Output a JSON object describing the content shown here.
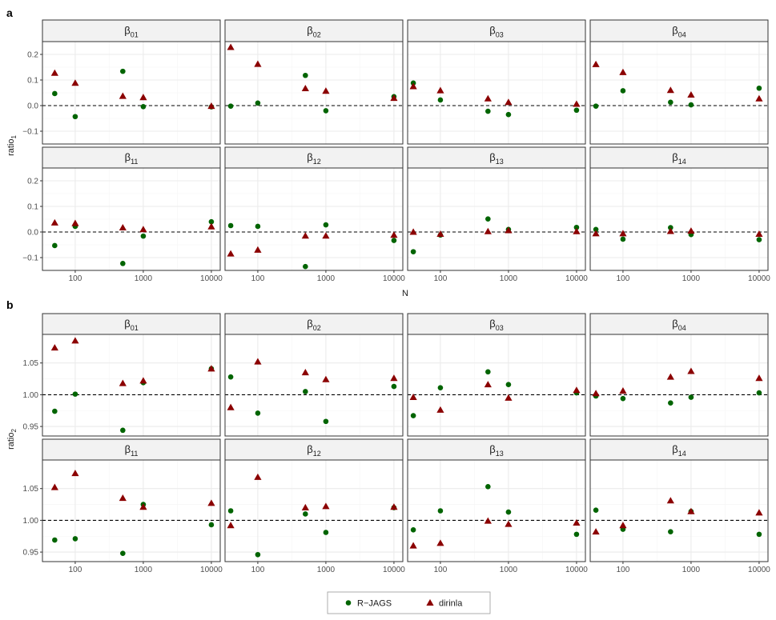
{
  "figure": {
    "panel_labels": [
      "a",
      "b"
    ],
    "colors": {
      "rjags": "#006400",
      "dirinla": "#8b0000",
      "strip_fill": "#f2f2f2",
      "grid_major": "#ebebeb",
      "grid_minor": "#f5f5f5",
      "frame": "#333333"
    },
    "legend": {
      "position": "bottom",
      "items": [
        {
          "label": "R−JAGS",
          "shape": "circle"
        },
        {
          "label": "dirinla",
          "shape": "triangle"
        }
      ]
    }
  },
  "chart_data": [
    {
      "type": "scatter",
      "panel": "a",
      "ylabel": "ratio",
      "ylabel_sub": "1",
      "xlabel": "N",
      "x_scale": "log",
      "xlim": [
        33,
        13500
      ],
      "ylim": [
        -0.15,
        0.25
      ],
      "xticks": [
        100,
        1000,
        10000
      ],
      "xtick_labels": [
        "100",
        "1000",
        "10000"
      ],
      "yticks": [
        -0.1,
        0.0,
        0.1,
        0.2
      ],
      "ytick_labels": [
        "−0.1",
        "0.0",
        "0.1",
        "0.2"
      ],
      "reference_line": 0,
      "rows": [
        {
          "facets": [
            {
              "base": "β",
              "sub": "01",
              "x": [
                50,
                100,
                500,
                1000,
                10000
              ],
              "rjags": [
                0.047,
                -0.043,
                0.134,
                -0.004,
                -0.005
              ],
              "dirinla": [
                0.127,
                0.088,
                0.037,
                0.032,
                -0.002
              ]
            },
            {
              "base": "β",
              "sub": "02",
              "x": [
                40,
                100,
                500,
                1000,
                10000
              ],
              "rjags": [
                -0.002,
                0.01,
                0.118,
                -0.02,
                0.035
              ],
              "dirinla": [
                0.228,
                0.162,
                0.067,
                0.057,
                0.029
              ]
            },
            {
              "base": "β",
              "sub": "03",
              "x": [
                40,
                100,
                500,
                1000,
                10000
              ],
              "rjags": [
                0.088,
                0.022,
                -0.022,
                -0.035,
                -0.018
              ],
              "dirinla": [
                0.075,
                0.059,
                0.027,
                0.013,
                0.006
              ]
            },
            {
              "base": "β",
              "sub": "04",
              "x": [
                40,
                100,
                500,
                1000,
                10000
              ],
              "rjags": [
                -0.002,
                0.058,
                0.013,
                0.003,
                0.068
              ],
              "dirinla": [
                0.161,
                0.13,
                0.06,
                0.042,
                0.027
              ]
            }
          ]
        },
        {
          "facets": [
            {
              "base": "β",
              "sub": "11",
              "x": [
                50,
                100,
                500,
                1000,
                10000
              ],
              "rjags": [
                -0.053,
                0.022,
                -0.123,
                -0.016,
                0.04
              ],
              "dirinla": [
                0.036,
                0.034,
                0.017,
                0.01,
                0.021
              ]
            },
            {
              "base": "β",
              "sub": "12",
              "x": [
                40,
                100,
                500,
                1000,
                10000
              ],
              "rjags": [
                0.025,
                0.022,
                -0.135,
                0.028,
                -0.033
              ],
              "dirinla": [
                -0.085,
                -0.07,
                -0.015,
                -0.015,
                -0.012
              ]
            },
            {
              "base": "β",
              "sub": "13",
              "x": [
                40,
                100,
                500,
                1000,
                10000
              ],
              "rjags": [
                -0.077,
                -0.012,
                0.051,
                0.01,
                0.018
              ],
              "dirinla": [
                0.0,
                -0.008,
                0.002,
                0.006,
                0.002
              ]
            },
            {
              "base": "β",
              "sub": "14",
              "x": [
                40,
                100,
                500,
                1000,
                10000
              ],
              "rjags": [
                0.01,
                -0.028,
                0.017,
                -0.01,
                -0.03
              ],
              "dirinla": [
                -0.006,
                -0.006,
                0.003,
                0.004,
                -0.008
              ]
            }
          ]
        }
      ]
    },
    {
      "type": "scatter",
      "panel": "b",
      "ylabel": "ratio",
      "ylabel_sub": "2",
      "xlabel": "",
      "x_scale": "log",
      "xlim": [
        33,
        13500
      ],
      "ylim": [
        0.935,
        1.095
      ],
      "xticks": [
        100,
        1000,
        10000
      ],
      "xtick_labels": [
        "100",
        "1000",
        "10000"
      ],
      "yticks": [
        0.95,
        1.0,
        1.05
      ],
      "ytick_labels": [
        "0.95",
        "1.00",
        "1.05"
      ],
      "reference_line": 1,
      "rows": [
        {
          "facets": [
            {
              "base": "β",
              "sub": "01",
              "x": [
                50,
                100,
                500,
                1000,
                10000
              ],
              "rjags": [
                0.974,
                1.001,
                0.944,
                1.019,
                1.041
              ],
              "dirinla": [
                1.074,
                1.085,
                1.018,
                1.022,
                1.041
              ]
            },
            {
              "base": "β",
              "sub": "02",
              "x": [
                40,
                100,
                500,
                1000,
                10000
              ],
              "rjags": [
                1.028,
                0.971,
                1.005,
                0.958,
                1.013
              ],
              "dirinla": [
                0.98,
                1.052,
                1.035,
                1.024,
                1.026
              ]
            },
            {
              "base": "β",
              "sub": "03",
              "x": [
                40,
                100,
                500,
                1000,
                10000
              ],
              "rjags": [
                0.967,
                1.011,
                1.036,
                1.016,
                1.003
              ],
              "dirinla": [
                0.996,
                0.976,
                1.016,
                0.995,
                1.007
              ]
            },
            {
              "base": "β",
              "sub": "04",
              "x": [
                40,
                100,
                500,
                1000,
                10000
              ],
              "rjags": [
                0.998,
                0.994,
                0.987,
                0.996,
                1.003
              ],
              "dirinla": [
                1.002,
                1.006,
                1.028,
                1.037,
                1.026
              ]
            }
          ]
        },
        {
          "facets": [
            {
              "base": "β",
              "sub": "11",
              "x": [
                50,
                100,
                500,
                1000,
                10000
              ],
              "rjags": [
                0.969,
                0.971,
                0.948,
                1.025,
                0.993
              ],
              "dirinla": [
                1.052,
                1.074,
                1.035,
                1.021,
                1.027
              ]
            },
            {
              "base": "β",
              "sub": "12",
              "x": [
                40,
                100,
                500,
                1000,
                10000
              ],
              "rjags": [
                1.015,
                0.946,
                1.01,
                0.981,
                1.02
              ],
              "dirinla": [
                0.992,
                1.068,
                1.02,
                1.022,
                1.021
              ]
            },
            {
              "base": "β",
              "sub": "13",
              "x": [
                40,
                100,
                500,
                1000,
                10000
              ],
              "rjags": [
                0.985,
                1.015,
                1.053,
                1.013,
                0.978
              ],
              "dirinla": [
                0.96,
                0.964,
                0.999,
                0.994,
                0.996
              ]
            },
            {
              "base": "β",
              "sub": "14",
              "x": [
                40,
                100,
                500,
                1000,
                10000
              ],
              "rjags": [
                1.016,
                0.986,
                0.982,
                1.014,
                0.978
              ],
              "dirinla": [
                0.982,
                0.992,
                1.031,
                1.014,
                1.012
              ]
            }
          ]
        }
      ]
    }
  ]
}
